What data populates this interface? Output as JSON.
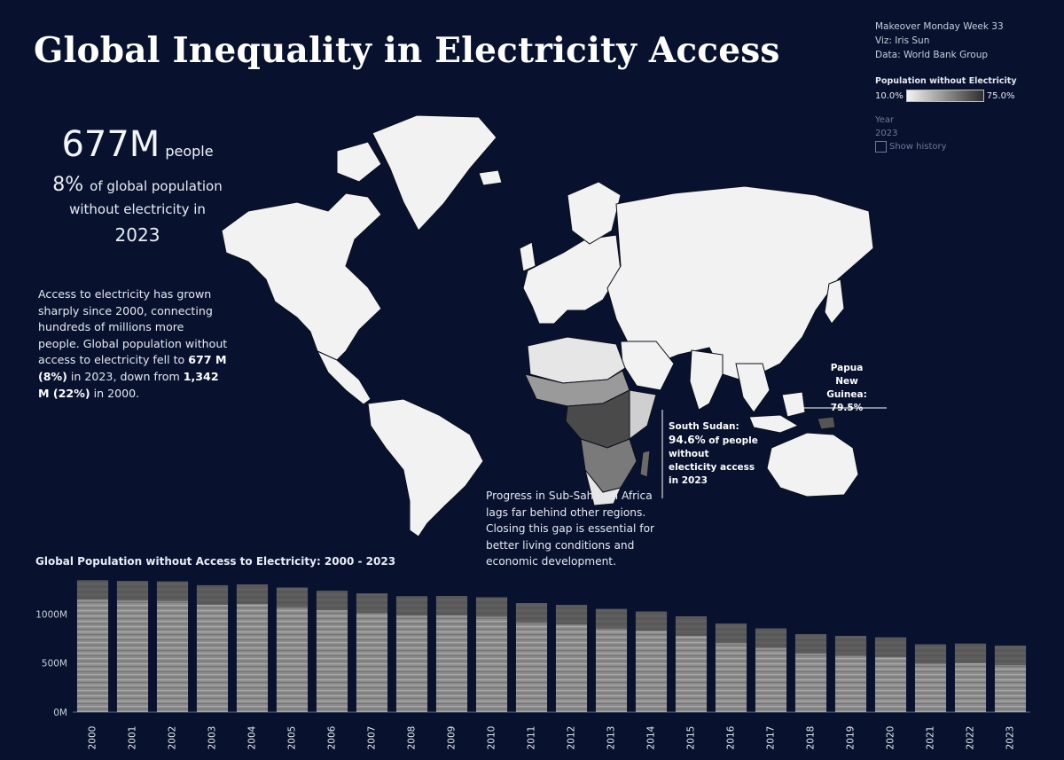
{
  "title": "Global Inequality in Electricity Access",
  "credits": {
    "line1": "Makeover Monday Week 33",
    "line2": "Viz: Iris Sun",
    "line3": "Data: World Bank Group"
  },
  "legend": {
    "title": "Population without Electricity",
    "min": "10.0%",
    "max": "75.0%",
    "color_low": "#f4f4f4",
    "color_high": "#2f2f2f"
  },
  "filter": {
    "label": "Year",
    "value": "2023",
    "checkbox": "Show history"
  },
  "kpi": {
    "people": "677M",
    "people_unit": "people",
    "pct": "8%",
    "pct_text": "of global population",
    "line2": "without electricity in",
    "year": "2023"
  },
  "para1": {
    "t1": "Access to electricity has grown sharply since 2000, connecting hundreds of millions more people. Global population without access to electricity fell to ",
    "b1": "677 M (8%)",
    "t2": " in 2023, down from ",
    "b2": "1,342 M (22%)",
    "t3": " in 2000."
  },
  "para2": "Progress in Sub-Saharan Africa lags far behind other regions. Closing this gap is essential for better living conditions and economic development.",
  "callout_png": {
    "line1": "Papua New",
    "line2": "Guinea:",
    "line3": "79.5%"
  },
  "callout_ss": {
    "line1": "South Sudan:",
    "value": "94.6%",
    "rest1": " of people",
    "line3": "without",
    "line4": "electicity access",
    "line5": "in  2023"
  },
  "colors": {
    "background": "#08122f",
    "land": "#f2f2f2",
    "bar": "#8c8c8c"
  },
  "chart_data": {
    "type": "bar",
    "title": "Global Population without Access to Electricity: 2000 - 2023",
    "categories": [
      "2000",
      "2001",
      "2002",
      "2003",
      "2004",
      "2005",
      "2006",
      "2007",
      "2008",
      "2009",
      "2010",
      "2011",
      "2012",
      "2013",
      "2014",
      "2015",
      "2016",
      "2017",
      "2018",
      "2019",
      "2020",
      "2021",
      "2022",
      "2023"
    ],
    "values": [
      1342,
      1335,
      1330,
      1292,
      1300,
      1268,
      1235,
      1208,
      1180,
      1182,
      1170,
      1110,
      1090,
      1050,
      1025,
      975,
      902,
      852,
      795,
      775,
      760,
      690,
      697,
      677
    ],
    "unit": "M",
    "ylim": [
      0,
      1400
    ],
    "yticks": [
      {
        "value": 0,
        "label": "0M"
      },
      {
        "value": 500,
        "label": "500M"
      },
      {
        "value": 1000,
        "label": "1000M"
      }
    ]
  }
}
